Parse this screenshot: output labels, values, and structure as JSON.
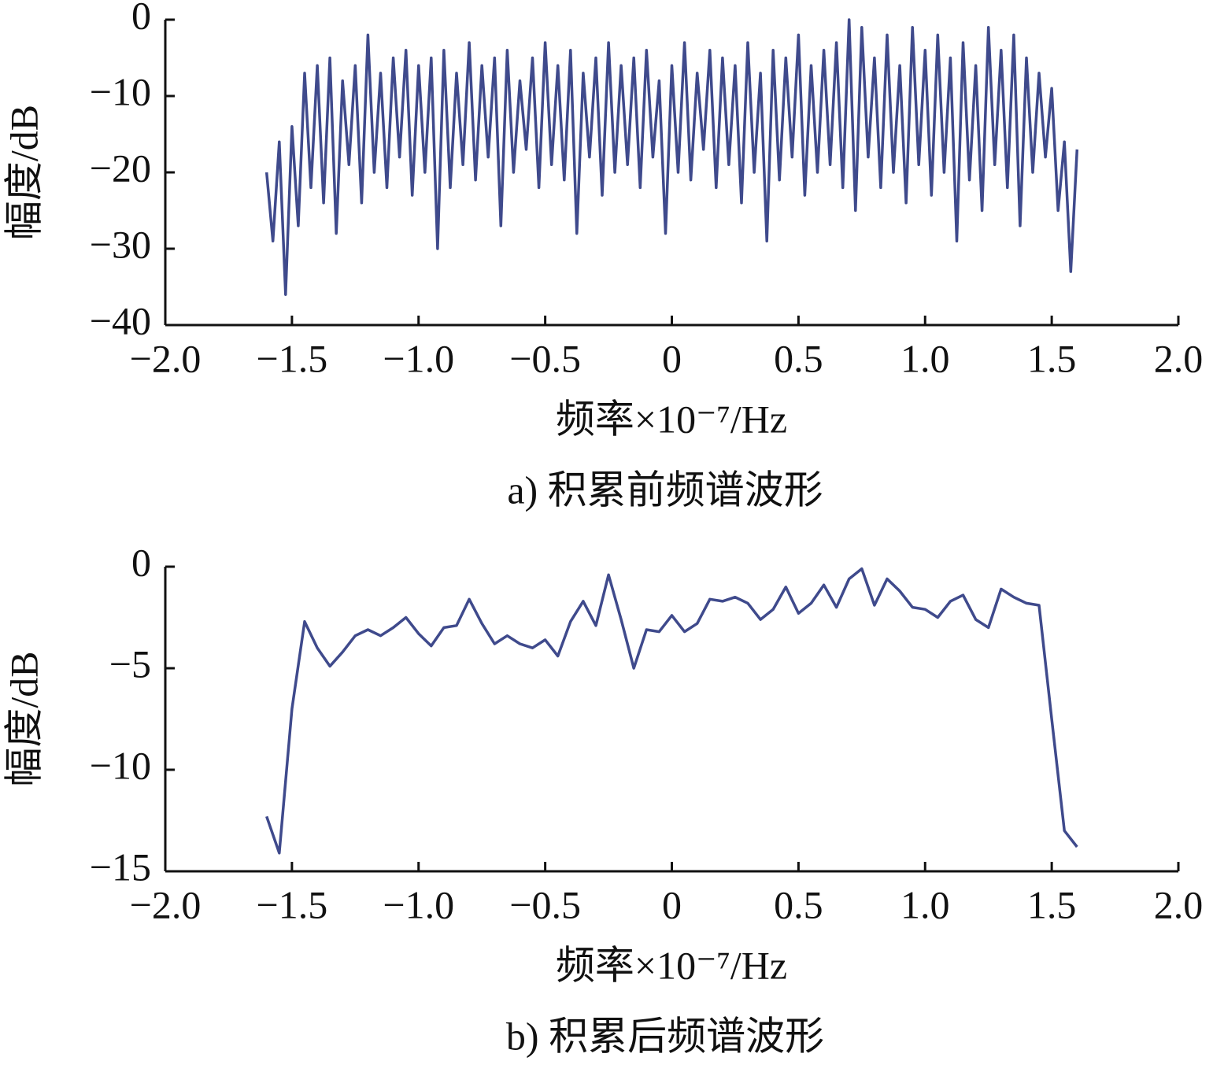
{
  "chart_data": [
    {
      "type": "line",
      "xlabel": "频率×10⁻⁷/Hz",
      "ylabel": "幅度/dB",
      "caption": "a) 积累前频谱波形",
      "color": "#3f4a8c",
      "xlim": [
        -2.0,
        2.0
      ],
      "ylim": [
        -40,
        0
      ],
      "xticks": [
        {
          "value": -2.0,
          "label": "−2.0"
        },
        {
          "value": -1.5,
          "label": "−1.5"
        },
        {
          "value": -1.0,
          "label": "−1.0"
        },
        {
          "value": -0.5,
          "label": "−0.5"
        },
        0,
        0.5,
        {
          "value": 1.0,
          "label": "1.0"
        },
        1.5,
        {
          "value": 2.0,
          "label": "2.0"
        }
      ],
      "yticks": [
        0,
        {
          "value": -10,
          "label": "−10"
        },
        {
          "value": -20,
          "label": "−20"
        },
        {
          "value": -30,
          "label": "−30"
        },
        {
          "value": -40,
          "label": "−40"
        }
      ],
      "x": [
        -1.6,
        -1.575,
        -1.55,
        -1.525,
        -1.5,
        -1.475,
        -1.45,
        -1.425,
        -1.4,
        -1.375,
        -1.35,
        -1.325,
        -1.3,
        -1.275,
        -1.25,
        -1.225,
        -1.2,
        -1.175,
        -1.15,
        -1.125,
        -1.1,
        -1.075,
        -1.05,
        -1.025,
        -1.0,
        -0.975,
        -0.95,
        -0.925,
        -0.9,
        -0.875,
        -0.85,
        -0.825,
        -0.8,
        -0.775,
        -0.75,
        -0.725,
        -0.7,
        -0.675,
        -0.65,
        -0.625,
        -0.6,
        -0.575,
        -0.55,
        -0.525,
        -0.5,
        -0.475,
        -0.45,
        -0.425,
        -0.4,
        -0.375,
        -0.35,
        -0.325,
        -0.3,
        -0.275,
        -0.25,
        -0.225,
        -0.2,
        -0.175,
        -0.15,
        -0.125,
        -0.1,
        -0.075,
        -0.05,
        -0.025,
        0.0,
        0.025,
        0.05,
        0.075,
        0.1,
        0.125,
        0.15,
        0.175,
        0.2,
        0.225,
        0.25,
        0.275,
        0.3,
        0.325,
        0.35,
        0.375,
        0.4,
        0.425,
        0.45,
        0.475,
        0.5,
        0.525,
        0.55,
        0.575,
        0.6,
        0.625,
        0.65,
        0.675,
        0.7,
        0.725,
        0.75,
        0.775,
        0.8,
        0.825,
        0.85,
        0.875,
        0.9,
        0.925,
        0.95,
        0.975,
        1.0,
        1.025,
        1.05,
        1.075,
        1.1,
        1.125,
        1.15,
        1.175,
        1.2,
        1.225,
        1.25,
        1.275,
        1.3,
        1.325,
        1.35,
        1.375,
        1.4,
        1.425,
        1.45,
        1.475,
        1.5,
        1.525,
        1.55,
        1.575,
        1.6
      ],
      "values": [
        -20,
        -29,
        -16,
        -36,
        -14,
        -27,
        -7,
        -22,
        -6,
        -24,
        -5,
        -28,
        -8,
        -19,
        -6,
        -24,
        -2,
        -20,
        -7,
        -22,
        -5,
        -18,
        -4,
        -23,
        -6,
        -20,
        -5,
        -30,
        -4,
        -22,
        -7,
        -19,
        -3,
        -21,
        -6,
        -18,
        -5,
        -27,
        -4,
        -20,
        -8,
        -17,
        -5,
        -22,
        -3,
        -19,
        -6,
        -21,
        -4,
        -28,
        -7,
        -18,
        -5,
        -23,
        -3,
        -20,
        -6,
        -19,
        -5,
        -22,
        -4,
        -18,
        -8,
        -28,
        -6,
        -20,
        -3,
        -21,
        -7,
        -17,
        -4,
        -22,
        -5,
        -19,
        -6,
        -24,
        -3,
        -20,
        -7,
        -29,
        -4,
        -21,
        -5,
        -18,
        -2,
        -23,
        -6,
        -20,
        -4,
        -19,
        -3,
        -22,
        0,
        -25,
        -1,
        -18,
        -5,
        -22,
        -2,
        -20,
        -6,
        -24,
        -1,
        -19,
        -4,
        -23,
        -2,
        -20,
        -5,
        -29,
        -3,
        -21,
        -6,
        -25,
        -1,
        -19,
        -4,
        -22,
        -2,
        -27,
        -5,
        -20,
        -7,
        -18,
        -9,
        -25,
        -16,
        -33,
        -17
      ]
    },
    {
      "type": "line",
      "xlabel": "频率×10⁻⁷/Hz",
      "ylabel": "幅度/dB",
      "caption": "b) 积累后频谱波形",
      "color": "#3f4a8c",
      "xlim": [
        -2.0,
        2.0
      ],
      "ylim": [
        -15,
        0
      ],
      "xticks": [
        {
          "value": -2.0,
          "label": "−2.0"
        },
        {
          "value": -1.5,
          "label": "−1.5"
        },
        {
          "value": -1.0,
          "label": "−1.0"
        },
        {
          "value": -0.5,
          "label": "−0.5"
        },
        0,
        0.5,
        {
          "value": 1.0,
          "label": "1.0"
        },
        1.5,
        {
          "value": 2.0,
          "label": "2.0"
        }
      ],
      "yticks": [
        0,
        {
          "value": -5,
          "label": "−5"
        },
        {
          "value": -10,
          "label": "−10"
        },
        {
          "value": -15,
          "label": "−15"
        }
      ],
      "x": [
        -1.6,
        -1.55,
        -1.5,
        -1.45,
        -1.4,
        -1.35,
        -1.3,
        -1.25,
        -1.2,
        -1.15,
        -1.1,
        -1.05,
        -1.0,
        -0.95,
        -0.9,
        -0.85,
        -0.8,
        -0.75,
        -0.7,
        -0.65,
        -0.6,
        -0.55,
        -0.5,
        -0.45,
        -0.4,
        -0.35,
        -0.3,
        -0.25,
        -0.2,
        -0.15,
        -0.1,
        -0.05,
        0.0,
        0.05,
        0.1,
        0.15,
        0.2,
        0.25,
        0.3,
        0.35,
        0.4,
        0.45,
        0.5,
        0.55,
        0.6,
        0.65,
        0.7,
        0.75,
        0.8,
        0.85,
        0.9,
        0.95,
        1.0,
        1.05,
        1.1,
        1.15,
        1.2,
        1.25,
        1.3,
        1.35,
        1.4,
        1.45,
        1.5,
        1.55,
        1.6
      ],
      "values": [
        -12.3,
        -14.1,
        -7.0,
        -2.7,
        -4.0,
        -4.9,
        -4.2,
        -3.4,
        -3.1,
        -3.4,
        -3.0,
        -2.5,
        -3.3,
        -3.9,
        -3.0,
        -2.9,
        -1.6,
        -2.8,
        -3.8,
        -3.4,
        -3.8,
        -4.0,
        -3.6,
        -4.4,
        -2.7,
        -1.7,
        -2.9,
        -0.4,
        -2.6,
        -5.0,
        -3.1,
        -3.2,
        -2.4,
        -3.2,
        -2.8,
        -1.6,
        -1.7,
        -1.5,
        -1.8,
        -2.6,
        -2.1,
        -1.0,
        -2.3,
        -1.8,
        -0.9,
        -2.0,
        -0.6,
        -0.1,
        -1.9,
        -0.6,
        -1.2,
        -2.0,
        -2.1,
        -2.5,
        -1.7,
        -1.4,
        -2.6,
        -3.0,
        -1.1,
        -1.5,
        -1.8,
        -1.9,
        -7.5,
        -13.0,
        -13.8
      ]
    }
  ]
}
